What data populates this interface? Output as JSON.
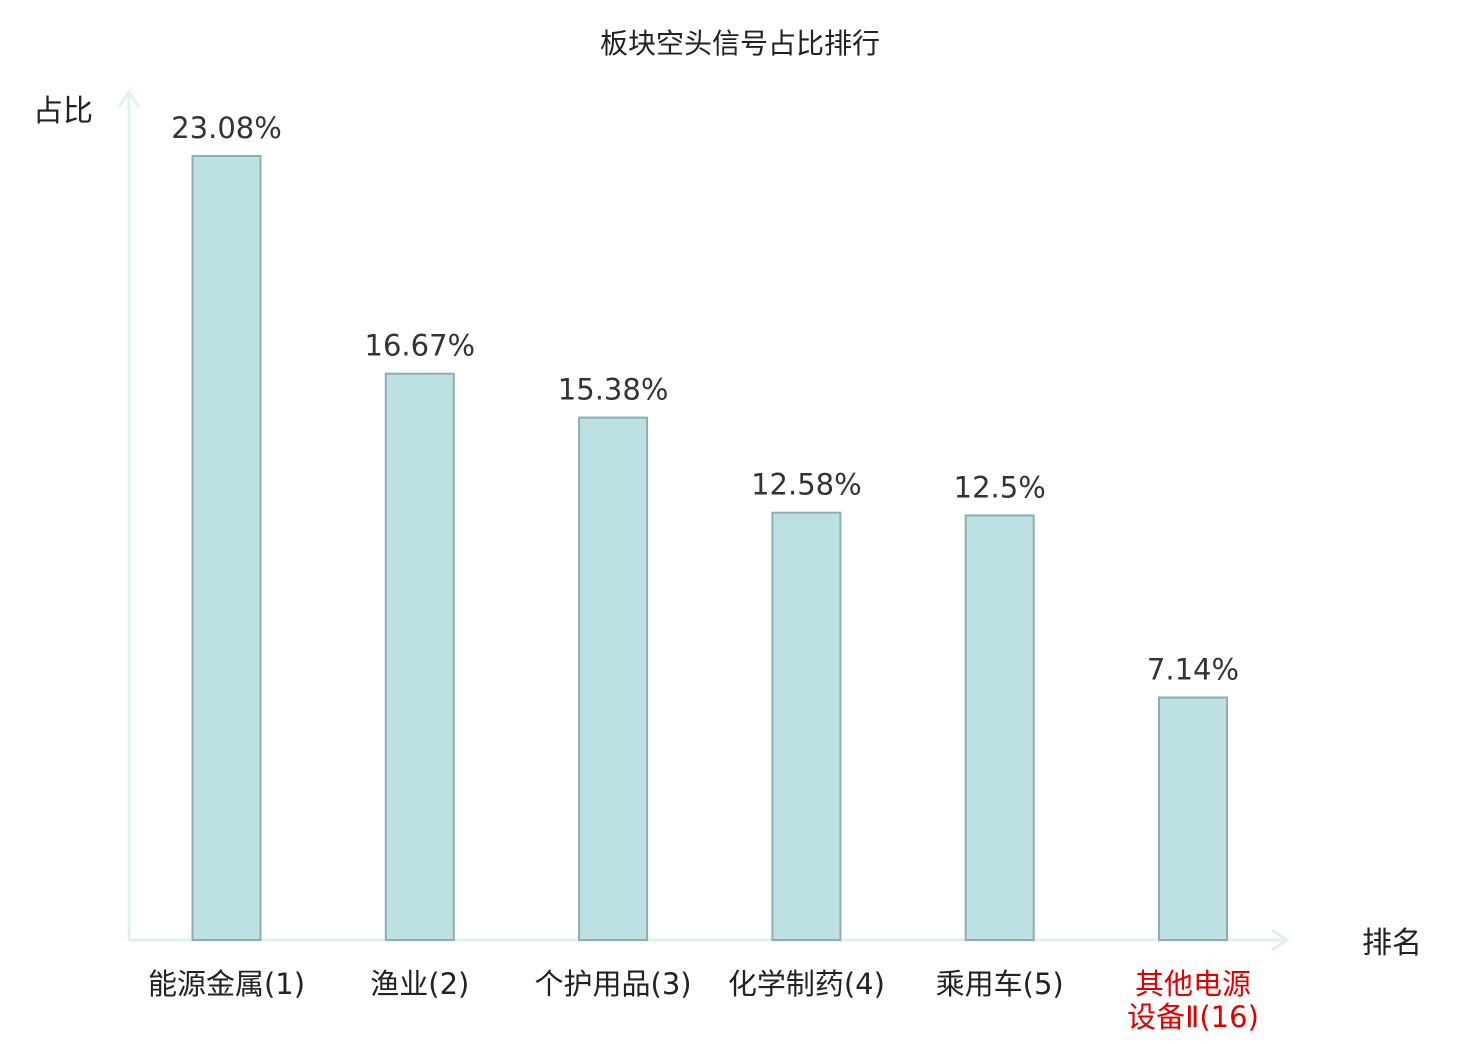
{
  "chart_data": {
    "type": "bar",
    "title": "板块空头信号占比排行",
    "ylabel": "占比",
    "xlabel": "排名",
    "ylim": [
      0,
      25
    ],
    "grid": false,
    "categories": [
      [
        "能源金属(1)"
      ],
      [
        "渔业(2)"
      ],
      [
        "个护用品(3)"
      ],
      [
        "化学制药(4)"
      ],
      [
        "乘用车(5)"
      ],
      [
        "其他电源",
        "设备Ⅱ(16)"
      ]
    ],
    "values": [
      23.08,
      16.67,
      15.38,
      12.58,
      12.5,
      7.14
    ],
    "value_labels": [
      "23.08%",
      "16.67%",
      "15.38%",
      "12.58%",
      "12.5%",
      "7.14%"
    ],
    "highlight_index": 5,
    "colors": {
      "bar_fill": "#bde0e3",
      "bar_stroke": "#8fadaf",
      "axis": "#e0f2f0",
      "text": "#333333",
      "highlight_text": "#e00000"
    }
  }
}
